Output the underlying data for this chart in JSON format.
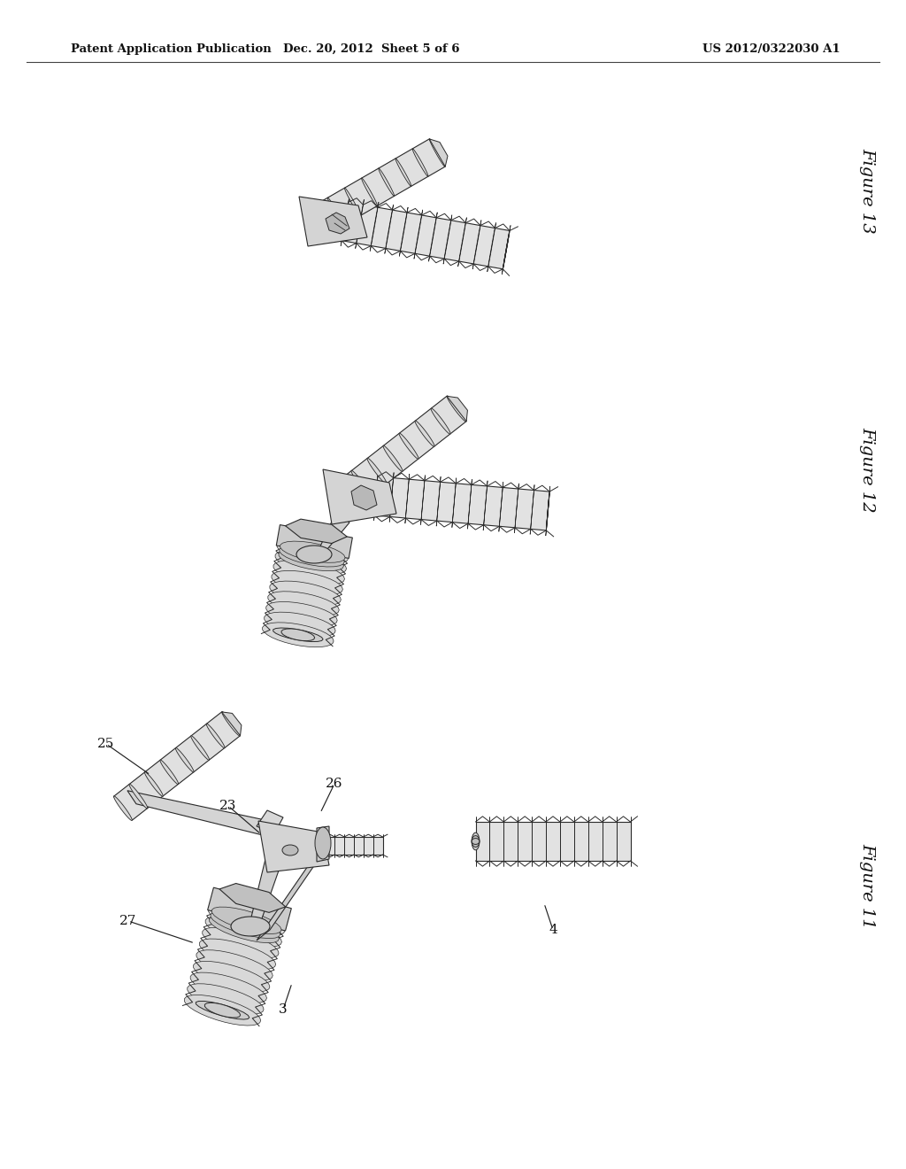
{
  "background_color": "#ffffff",
  "page_width": 10.24,
  "page_height": 13.2,
  "header_left": "Patent Application Publication",
  "header_center": "Dec. 20, 2012  Sheet 5 of 6",
  "header_right": "US 2012/0322030 A1",
  "fig13_label": "Figure 13",
  "fig12_label": "Figure 12",
  "fig11_label": "Figure 11",
  "line_color": "#1a1a1a",
  "body_fill": "#e8e8e8",
  "body_fill2": "#d4d4d4",
  "body_fill3": "#c0c0c0",
  "edge_color": "#2a2a2a"
}
